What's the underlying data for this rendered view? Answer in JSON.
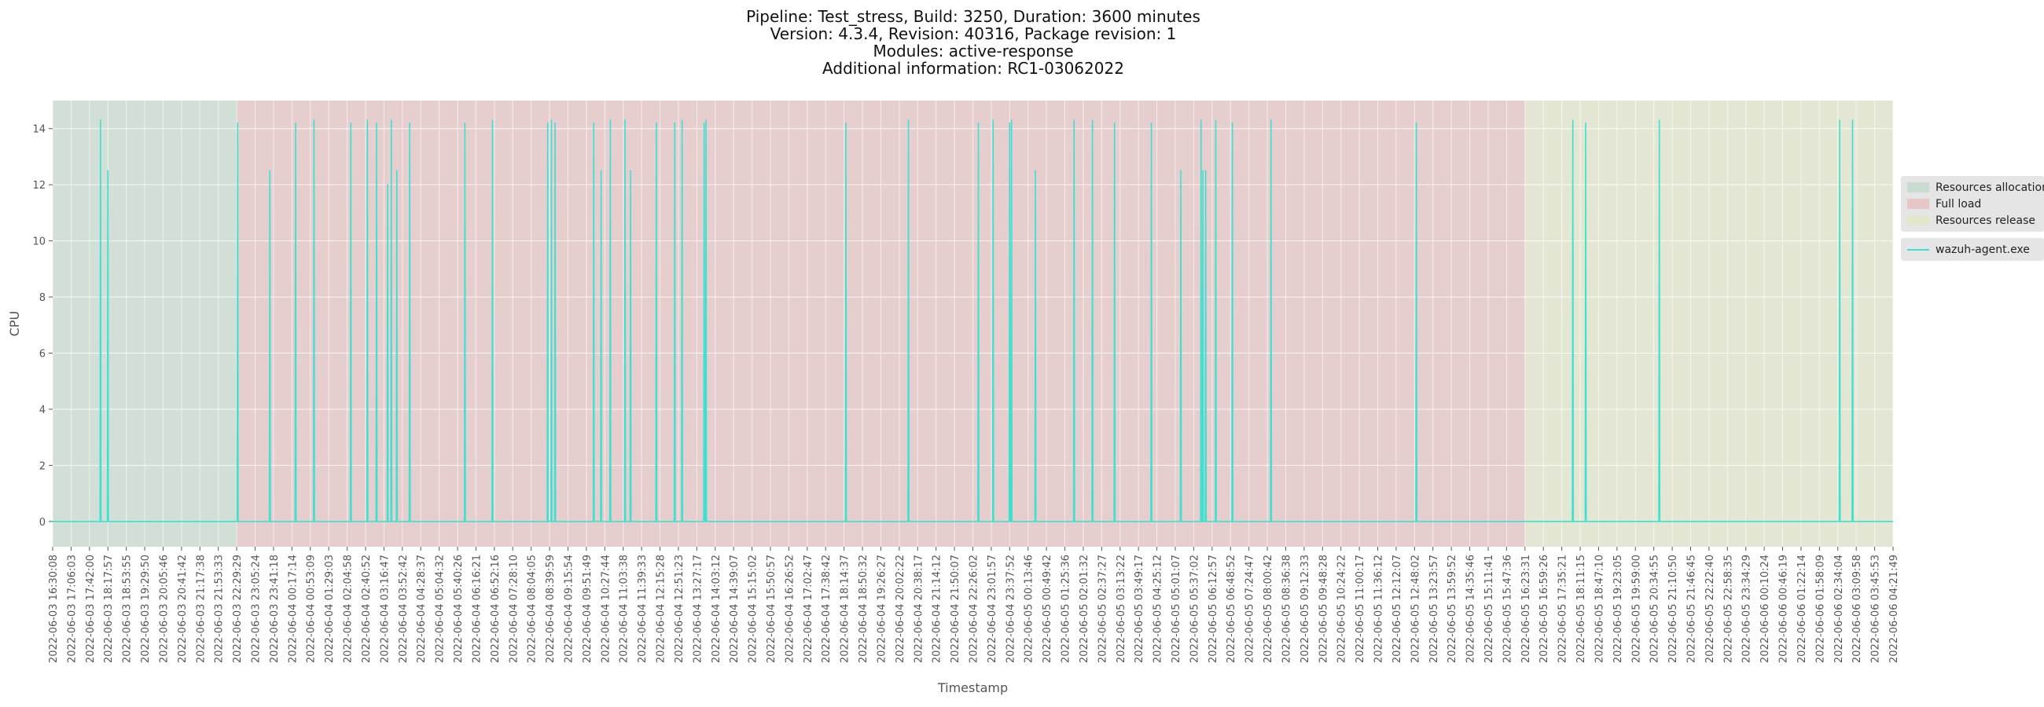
{
  "title_lines": [
    "Pipeline: Test_stress, Build: 3250, Duration: 3600 minutes",
    "Version: 4.3.4, Revision: 40316, Package revision: 1",
    "Modules: active-response",
    "Additional information: RC1-03062022"
  ],
  "colors": {
    "plot_bg": "#e5e5e5",
    "grid": "#ffffff",
    "series_line": "#40e0d0",
    "phase_allocation": "#c9dcd0",
    "phase_full_load": "#e6c6c6",
    "phase_release": "#e2e6cc"
  },
  "chart_data": {
    "type": "line",
    "xlabel": "Timestamp",
    "ylabel": "CPU",
    "ylim": [
      -0.9,
      15
    ],
    "y_ticks": [
      0,
      2,
      4,
      6,
      8,
      10,
      12,
      14
    ],
    "grid": true,
    "legend_placement": "right",
    "x_ticks": [
      "2022-06-03 16:30:08",
      "2022-06-03 17:06:03",
      "2022-06-03 17:42:00",
      "2022-06-03 18:17:57",
      "2022-06-03 18:53:55",
      "2022-06-03 19:29:50",
      "2022-06-03 20:05:46",
      "2022-06-03 20:41:42",
      "2022-06-03 21:17:38",
      "2022-06-03 21:53:33",
      "2022-06-03 22:29:29",
      "2022-06-03 23:05:24",
      "2022-06-03 23:41:18",
      "2022-06-04 00:17:14",
      "2022-06-04 00:53:09",
      "2022-06-04 01:29:03",
      "2022-06-04 02:04:58",
      "2022-06-04 02:40:52",
      "2022-06-04 03:16:47",
      "2022-06-04 03:52:42",
      "2022-06-04 04:28:37",
      "2022-06-04 05:04:32",
      "2022-06-04 05:40:26",
      "2022-06-04 06:16:21",
      "2022-06-04 06:52:16",
      "2022-06-04 07:28:10",
      "2022-06-04 08:04:05",
      "2022-06-04 08:39:59",
      "2022-06-04 09:15:54",
      "2022-06-04 09:51:49",
      "2022-06-04 10:27:44",
      "2022-06-04 11:03:38",
      "2022-06-04 11:39:33",
      "2022-06-04 12:15:28",
      "2022-06-04 12:51:23",
      "2022-06-04 13:27:17",
      "2022-06-04 14:03:12",
      "2022-06-04 14:39:07",
      "2022-06-04 15:15:02",
      "2022-06-04 15:50:57",
      "2022-06-04 16:26:52",
      "2022-06-04 17:02:47",
      "2022-06-04 17:38:42",
      "2022-06-04 18:14:37",
      "2022-06-04 18:50:32",
      "2022-06-04 19:26:27",
      "2022-06-04 20:02:22",
      "2022-06-04 20:38:17",
      "2022-06-04 21:14:12",
      "2022-06-04 21:50:07",
      "2022-06-04 22:26:02",
      "2022-06-04 23:01:57",
      "2022-06-04 23:37:52",
      "2022-06-05 00:13:46",
      "2022-06-05 00:49:42",
      "2022-06-05 01:25:36",
      "2022-06-05 02:01:32",
      "2022-06-05 02:37:27",
      "2022-06-05 03:13:22",
      "2022-06-05 03:49:17",
      "2022-06-05 04:25:12",
      "2022-06-05 05:01:07",
      "2022-06-05 05:37:02",
      "2022-06-05 06:12:57",
      "2022-06-05 06:48:52",
      "2022-06-05 07:24:47",
      "2022-06-05 08:00:42",
      "2022-06-05 08:36:38",
      "2022-06-05 09:12:33",
      "2022-06-05 09:48:28",
      "2022-06-05 10:24:22",
      "2022-06-05 11:00:17",
      "2022-06-05 11:36:12",
      "2022-06-05 12:12:07",
      "2022-06-05 12:48:02",
      "2022-06-05 13:23:57",
      "2022-06-05 13:59:52",
      "2022-06-05 14:35:46",
      "2022-06-05 15:11:41",
      "2022-06-05 15:47:36",
      "2022-06-05 16:23:31",
      "2022-06-05 16:59:26",
      "2022-06-05 17:35:21",
      "2022-06-05 18:11:15",
      "2022-06-05 18:47:10",
      "2022-06-05 19:23:05",
      "2022-06-05 19:59:00",
      "2022-06-05 20:34:55",
      "2022-06-05 21:10:50",
      "2022-06-05 21:46:45",
      "2022-06-05 22:22:40",
      "2022-06-05 22:58:35",
      "2022-06-05 23:34:29",
      "2022-06-06 00:10:24",
      "2022-06-06 00:46:19",
      "2022-06-06 01:22:14",
      "2022-06-06 01:58:09",
      "2022-06-06 02:34:04",
      "2022-06-06 03:09:58",
      "2022-06-06 03:45:53",
      "2022-06-06 04:21:49"
    ],
    "phases": [
      {
        "name": "Resources allocation",
        "start_tick": 0,
        "end_tick": 10
      },
      {
        "name": "Full load",
        "start_tick": 10,
        "end_tick": 80
      },
      {
        "name": "Resources release",
        "start_tick": 80,
        "end_tick": 100
      }
    ],
    "series": [
      {
        "name": "wazuh-agent.exe",
        "spikes": [
          {
            "x_tick": 2.6,
            "y": 14.3
          },
          {
            "x_tick": 3.0,
            "y": 12.5
          },
          {
            "x_tick": 10.05,
            "y": 14.2
          },
          {
            "x_tick": 11.8,
            "y": 12.5
          },
          {
            "x_tick": 13.2,
            "y": 14.2
          },
          {
            "x_tick": 14.2,
            "y": 14.3
          },
          {
            "x_tick": 16.2,
            "y": 14.2
          },
          {
            "x_tick": 17.1,
            "y": 14.3
          },
          {
            "x_tick": 17.6,
            "y": 14.2
          },
          {
            "x_tick": 18.2,
            "y": 12.0
          },
          {
            "x_tick": 18.4,
            "y": 14.3
          },
          {
            "x_tick": 18.7,
            "y": 12.5
          },
          {
            "x_tick": 19.4,
            "y": 14.2
          },
          {
            "x_tick": 22.4,
            "y": 14.2
          },
          {
            "x_tick": 23.9,
            "y": 14.3
          },
          {
            "x_tick": 26.9,
            "y": 14.2
          },
          {
            "x_tick": 27.1,
            "y": 14.3
          },
          {
            "x_tick": 27.3,
            "y": 14.2
          },
          {
            "x_tick": 29.4,
            "y": 14.2
          },
          {
            "x_tick": 29.8,
            "y": 12.5
          },
          {
            "x_tick": 30.3,
            "y": 14.3
          },
          {
            "x_tick": 31.1,
            "y": 14.3
          },
          {
            "x_tick": 31.4,
            "y": 12.5
          },
          {
            "x_tick": 32.8,
            "y": 14.2
          },
          {
            "x_tick": 33.8,
            "y": 14.2
          },
          {
            "x_tick": 34.2,
            "y": 14.3
          },
          {
            "x_tick": 35.4,
            "y": 14.2
          },
          {
            "x_tick": 35.5,
            "y": 14.3
          },
          {
            "x_tick": 43.1,
            "y": 14.2
          },
          {
            "x_tick": 46.5,
            "y": 14.3
          },
          {
            "x_tick": 50.3,
            "y": 14.2
          },
          {
            "x_tick": 51.1,
            "y": 14.3
          },
          {
            "x_tick": 52.0,
            "y": 14.2
          },
          {
            "x_tick": 52.1,
            "y": 14.3
          },
          {
            "x_tick": 53.4,
            "y": 12.5
          },
          {
            "x_tick": 55.5,
            "y": 14.3
          },
          {
            "x_tick": 56.5,
            "y": 14.3
          },
          {
            "x_tick": 57.7,
            "y": 14.2
          },
          {
            "x_tick": 59.7,
            "y": 14.2
          },
          {
            "x_tick": 61.3,
            "y": 12.5
          },
          {
            "x_tick": 62.4,
            "y": 14.3
          },
          {
            "x_tick": 62.5,
            "y": 12.5
          },
          {
            "x_tick": 62.65,
            "y": 12.5
          },
          {
            "x_tick": 63.2,
            "y": 14.3
          },
          {
            "x_tick": 64.1,
            "y": 14.2
          },
          {
            "x_tick": 66.2,
            "y": 14.3
          },
          {
            "x_tick": 74.1,
            "y": 14.2
          },
          {
            "x_tick": 82.6,
            "y": 14.3
          },
          {
            "x_tick": 83.3,
            "y": 14.2
          },
          {
            "x_tick": 87.3,
            "y": 14.3
          },
          {
            "x_tick": 97.1,
            "y": 14.3
          },
          {
            "x_tick": 97.8,
            "y": 14.3
          }
        ]
      }
    ]
  },
  "legend": {
    "phases": [
      "Resources allocation",
      "Full load",
      "Resources release"
    ],
    "series": [
      "wazuh-agent.exe"
    ]
  }
}
